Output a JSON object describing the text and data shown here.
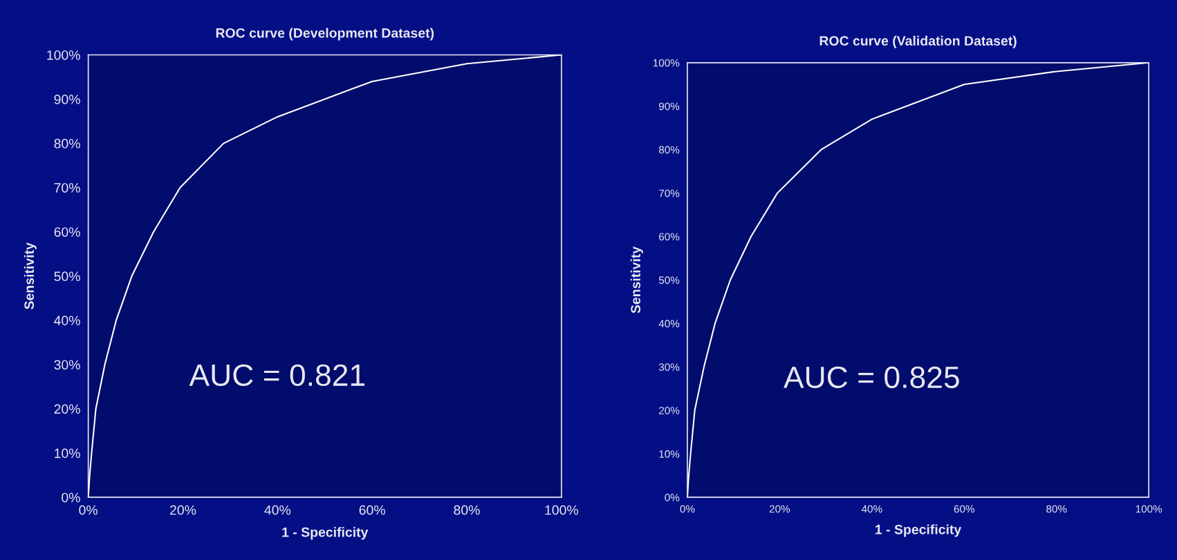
{
  "chart_data": [
    {
      "type": "line",
      "title": "ROC curve (Development Dataset)",
      "xlabel": "1 - Specificity",
      "ylabel": "Sensitivity",
      "annotations": [
        "AUC = 0.821"
      ],
      "series": [
        {
          "color": "#ffffff",
          "x": [
            0,
            0.3,
            0.7,
            1.6,
            3.5,
            5.9,
            9.2,
            13.8,
            19.4,
            28.6,
            40,
            60,
            80,
            100
          ],
          "values": [
            0,
            5,
            10,
            20,
            30,
            40,
            50,
            60,
            70,
            80,
            86,
            94,
            98,
            100
          ]
        }
      ],
      "xlim": [
        0,
        100
      ],
      "ylim": [
        0,
        100
      ],
      "xticks": [
        {
          "value": 0,
          "label": "0%"
        },
        {
          "value": 20,
          "label": "20%"
        },
        {
          "value": 40,
          "label": "40%"
        },
        {
          "value": 60,
          "label": "60%"
        },
        {
          "value": 80,
          "label": "80%"
        },
        {
          "value": 100,
          "label": "100%"
        }
      ],
      "yticks": [
        {
          "value": 0,
          "label": "0%"
        },
        {
          "value": 10,
          "label": "10%"
        },
        {
          "value": 20,
          "label": "20%"
        },
        {
          "value": 30,
          "label": "30%"
        },
        {
          "value": 40,
          "label": "40%"
        },
        {
          "value": 50,
          "label": "50%"
        },
        {
          "value": 60,
          "label": "60%"
        },
        {
          "value": 70,
          "label": "70%"
        },
        {
          "value": 80,
          "label": "80%"
        },
        {
          "value": 90,
          "label": "90%"
        },
        {
          "value": 100,
          "label": "100%"
        }
      ],
      "grid": false,
      "legend": false,
      "marker": "none",
      "line_style": "solid"
    },
    {
      "type": "line",
      "title": "ROC curve (Validation Dataset)",
      "xlabel": "1 - Specificity",
      "ylabel": "Sensitivity",
      "annotations": [
        "AUC = 0.825"
      ],
      "series": [
        {
          "color": "#ffffff",
          "x": [
            0,
            0.3,
            0.7,
            1.6,
            3.6,
            6,
            9.3,
            13.8,
            19.5,
            29,
            40,
            60,
            80,
            100
          ],
          "values": [
            0,
            5,
            10,
            20,
            30,
            40,
            50,
            60,
            70,
            80,
            87,
            95,
            98,
            100
          ]
        }
      ],
      "xlim": [
        0,
        100
      ],
      "ylim": [
        0,
        100
      ],
      "xticks": [
        {
          "value": 0,
          "label": "0%"
        },
        {
          "value": 20,
          "label": "20%"
        },
        {
          "value": 40,
          "label": "40%"
        },
        {
          "value": 60,
          "label": "60%"
        },
        {
          "value": 80,
          "label": "80%"
        },
        {
          "value": 100,
          "label": "100%"
        }
      ],
      "yticks": [
        {
          "value": 0,
          "label": "0%"
        },
        {
          "value": 10,
          "label": "10%"
        },
        {
          "value": 20,
          "label": "20%"
        },
        {
          "value": 30,
          "label": "30%"
        },
        {
          "value": 40,
          "label": "40%"
        },
        {
          "value": 50,
          "label": "50%"
        },
        {
          "value": 60,
          "label": "60%"
        },
        {
          "value": 70,
          "label": "70%"
        },
        {
          "value": 80,
          "label": "80%"
        },
        {
          "value": 90,
          "label": "90%"
        },
        {
          "value": 100,
          "label": "100%"
        }
      ],
      "grid": false,
      "legend": false,
      "marker": "none",
      "line_style": "solid"
    }
  ]
}
